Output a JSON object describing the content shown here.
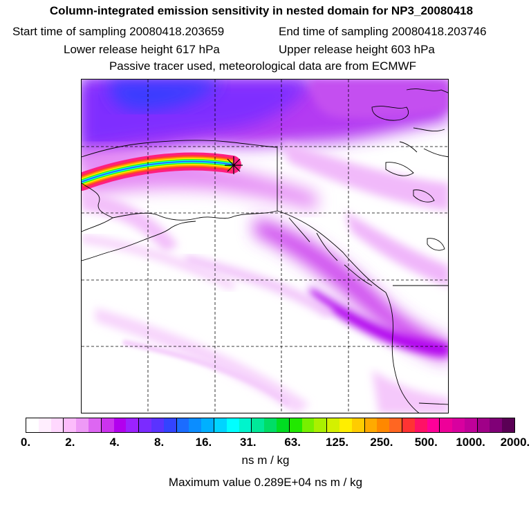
{
  "title": "Column-integrated emission sensitivity in nested domain for NP3_20080418",
  "start_label": "Start time of sampling 20080418.203659",
  "end_label": "End time of sampling 20080418.203746",
  "lower_label": "Lower release height  617 hPa",
  "upper_label": "Upper release height  603 hPa",
  "info_line": "Passive tracer used, meteorological data are from ECMWF",
  "colorbar": {
    "labels": [
      "0.",
      "2.",
      "4.",
      "8.",
      "16.",
      "31.",
      "63.",
      "125.",
      "250.",
      "500.",
      "1000.",
      "2000."
    ],
    "colors": [
      "#ffffff",
      "#ffeefe",
      "#ffd8fe",
      "#fcbcfb",
      "#ee99f6",
      "#dd66f2",
      "#cc33ee",
      "#b200ee",
      "#9c22ff",
      "#7b2bff",
      "#5a33ff",
      "#3344ff",
      "#1b6cff",
      "#0b8dff",
      "#00b0ff",
      "#00d4ff",
      "#00ffff",
      "#00f4cc",
      "#00e899",
      "#00dd66",
      "#00dd22",
      "#22e800",
      "#77f000",
      "#aaf000",
      "#d4f000",
      "#ffee00",
      "#ffcc00",
      "#ffaa00",
      "#ff8800",
      "#ff6622",
      "#ff3333",
      "#ff1166",
      "#ff0099",
      "#ee0099",
      "#d8009f",
      "#c0009a",
      "#a00088",
      "#800077",
      "#5a0055"
    ],
    "units": "ns m / kg"
  },
  "max_value": "Maximum value  0.289E+04 ns m / kg"
}
